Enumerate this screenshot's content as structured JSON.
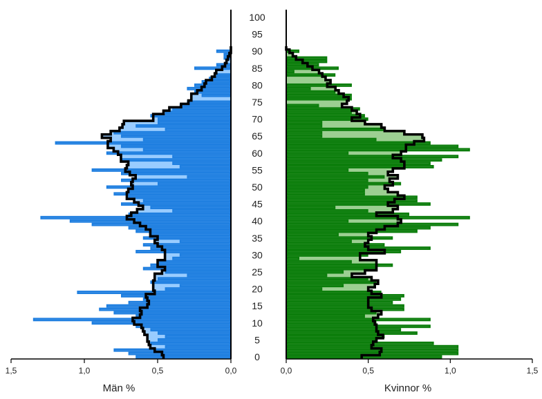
{
  "chart_data": {
    "type": "population-pyramid",
    "title": "",
    "age_axis": {
      "ticks": [
        0,
        5,
        10,
        15,
        20,
        25,
        30,
        35,
        40,
        45,
        50,
        55,
        60,
        65,
        70,
        75,
        80,
        85,
        90,
        95,
        100
      ],
      "range": [
        0,
        100
      ]
    },
    "legend": "none",
    "grid": false,
    "colors": {
      "men_fill": "#99ccff",
      "men_outline": "#1f7fe0",
      "women_fill": "#9ccf92",
      "women_outline": "#0b7d0b",
      "line": "#000000"
    },
    "men": {
      "xlabel": "Män %",
      "xlim": [
        1.5,
        0.0
      ],
      "x_ticks": [
        "1,5",
        "1,0",
        "0,5",
        "0,0"
      ],
      "x_tick_values": [
        1.5,
        1.0,
        0.5,
        0.0
      ],
      "ages": [
        0,
        1,
        2,
        3,
        4,
        5,
        6,
        7,
        8,
        9,
        10,
        11,
        12,
        13,
        14,
        15,
        16,
        17,
        18,
        19,
        20,
        21,
        22,
        23,
        24,
        25,
        26,
        27,
        28,
        29,
        30,
        31,
        32,
        33,
        34,
        35,
        36,
        37,
        38,
        39,
        40,
        41,
        42,
        43,
        44,
        45,
        46,
        47,
        48,
        49,
        50,
        51,
        52,
        53,
        54,
        55,
        56,
        57,
        58,
        59,
        60,
        61,
        62,
        63,
        64,
        65,
        66,
        67,
        68,
        69,
        70,
        71,
        72,
        73,
        74,
        75,
        76,
        77,
        78,
        79,
        80,
        81,
        82,
        83,
        84,
        85,
        86,
        87,
        88,
        89,
        90,
        91
      ],
      "smoothed": [
        0.46,
        0.47,
        0.52,
        0.55,
        0.56,
        0.57,
        0.57,
        0.59,
        0.6,
        0.61,
        0.66,
        0.67,
        0.62,
        0.61,
        0.62,
        0.57,
        0.56,
        0.57,
        0.58,
        0.52,
        0.53,
        0.53,
        0.53,
        0.52,
        0.52,
        0.47,
        0.45,
        0.5,
        0.5,
        0.45,
        0.45,
        0.45,
        0.47,
        0.5,
        0.52,
        0.5,
        0.55,
        0.55,
        0.58,
        0.62,
        0.66,
        0.71,
        0.68,
        0.64,
        0.6,
        0.63,
        0.66,
        0.71,
        0.71,
        0.7,
        0.67,
        0.68,
        0.67,
        0.65,
        0.69,
        0.72,
        0.71,
        0.7,
        0.75,
        0.75,
        0.77,
        0.8,
        0.84,
        0.84,
        0.82,
        0.88,
        0.82,
        0.76,
        0.74,
        0.73,
        0.53,
        0.53,
        0.46,
        0.42,
        0.34,
        0.29,
        0.27,
        0.27,
        0.23,
        0.2,
        0.18,
        0.17,
        0.13,
        0.11,
        0.1,
        0.06,
        0.04,
        0.03,
        0.02,
        0.01,
        0.0,
        0.0
      ],
      "bars": [
        [
          0,
          0.65
        ],
        [
          1,
          0.7
        ],
        [
          2,
          0.8
        ],
        [
          3,
          0.45
        ],
        [
          4,
          0.55
        ],
        [
          5,
          0.5
        ],
        [
          6,
          0.45
        ],
        [
          7,
          0.5
        ],
        [
          8,
          0.55
        ],
        [
          9,
          0.65
        ],
        [
          10,
          0.95
        ],
        [
          11,
          1.35
        ],
        [
          12,
          0.65
        ],
        [
          13,
          0.8
        ],
        [
          14,
          0.9
        ],
        [
          15,
          0.85
        ],
        [
          16,
          0.7
        ],
        [
          17,
          0.6
        ],
        [
          18,
          0.75
        ],
        [
          19,
          1.05
        ],
        [
          20,
          0.45
        ],
        [
          21,
          0.35
        ],
        [
          22,
          0.55
        ],
        [
          23,
          0.5
        ],
        [
          24,
          0.3
        ],
        [
          25,
          0.45
        ],
        [
          26,
          0.6
        ],
        [
          27,
          0.55
        ],
        [
          28,
          0.5
        ],
        [
          29,
          0.4
        ],
        [
          30,
          0.35
        ],
        [
          31,
          0.65
        ],
        [
          32,
          0.55
        ],
        [
          33,
          0.6
        ],
        [
          34,
          0.35
        ],
        [
          35,
          0.6
        ],
        [
          36,
          0.55
        ],
        [
          37,
          0.65
        ],
        [
          38,
          0.7
        ],
        [
          39,
          0.95
        ],
        [
          40,
          1.1
        ],
        [
          41,
          1.3
        ],
        [
          42,
          0.7
        ],
        [
          43,
          0.4
        ],
        [
          44,
          0.55
        ],
        [
          45,
          0.75
        ],
        [
          46,
          0.6
        ],
        [
          47,
          0.7
        ],
        [
          48,
          0.8
        ],
        [
          49,
          0.7
        ],
        [
          50,
          0.85
        ],
        [
          51,
          0.5
        ],
        [
          52,
          0.75
        ],
        [
          53,
          0.3
        ],
        [
          54,
          0.75
        ],
        [
          55,
          0.95
        ],
        [
          56,
          0.35
        ],
        [
          57,
          0.4
        ],
        [
          58,
          0.75
        ],
        [
          59,
          0.4
        ],
        [
          60,
          0.85
        ],
        [
          61,
          0.6
        ],
        [
          62,
          0.75
        ],
        [
          63,
          1.2
        ],
        [
          64,
          0.6
        ],
        [
          65,
          0.75
        ],
        [
          66,
          0.8
        ],
        [
          67,
          0.45
        ],
        [
          68,
          0.65
        ],
        [
          69,
          0.5
        ],
        [
          70,
          0.5
        ],
        [
          71,
          0.55
        ],
        [
          72,
          0.45
        ],
        [
          73,
          0.4
        ],
        [
          74,
          0.35
        ],
        [
          75,
          0.3
        ],
        [
          76,
          0.0
        ],
        [
          77,
          0.2
        ],
        [
          78,
          0.25
        ],
        [
          79,
          0.3
        ],
        [
          80,
          0.25
        ],
        [
          81,
          0.2
        ],
        [
          82,
          0.15
        ],
        [
          83,
          0.1
        ],
        [
          84,
          0.0
        ],
        [
          85,
          0.25
        ],
        [
          86,
          0.1
        ],
        [
          87,
          0.0
        ],
        [
          88,
          0.05
        ],
        [
          89,
          0.05
        ],
        [
          90,
          0.1
        ],
        [
          91,
          0.0
        ]
      ]
    },
    "women": {
      "xlabel": "Kvinnor %",
      "xlim": [
        0.0,
        1.5
      ],
      "x_ticks": [
        "0,0",
        "0,5",
        "1,0",
        "1,5"
      ],
      "x_tick_values": [
        0.0,
        0.5,
        1.0,
        1.5
      ],
      "ages": [
        0,
        1,
        2,
        3,
        4,
        5,
        6,
        7,
        8,
        9,
        10,
        11,
        12,
        13,
        14,
        15,
        16,
        17,
        18,
        19,
        20,
        21,
        22,
        23,
        24,
        25,
        26,
        27,
        28,
        29,
        30,
        31,
        32,
        33,
        34,
        35,
        36,
        37,
        38,
        39,
        40,
        41,
        42,
        43,
        44,
        45,
        46,
        47,
        48,
        49,
        50,
        51,
        52,
        53,
        54,
        55,
        56,
        57,
        58,
        59,
        60,
        61,
        62,
        63,
        64,
        65,
        66,
        67,
        68,
        69,
        70,
        71,
        72,
        73,
        74,
        75,
        76,
        77,
        78,
        79,
        80,
        81,
        82,
        83,
        84,
        85,
        86,
        87,
        88,
        89,
        90,
        91
      ],
      "smoothed": [
        0.46,
        0.57,
        0.58,
        0.52,
        0.53,
        0.55,
        0.59,
        0.56,
        0.55,
        0.55,
        0.54,
        0.53,
        0.56,
        0.58,
        0.52,
        0.5,
        0.5,
        0.5,
        0.58,
        0.52,
        0.5,
        0.54,
        0.56,
        0.52,
        0.4,
        0.48,
        0.55,
        0.55,
        0.55,
        0.45,
        0.45,
        0.6,
        0.5,
        0.48,
        0.5,
        0.52,
        0.5,
        0.55,
        0.6,
        0.68,
        0.7,
        0.68,
        0.55,
        0.65,
        0.68,
        0.62,
        0.66,
        0.72,
        0.68,
        0.62,
        0.6,
        0.65,
        0.63,
        0.68,
        0.62,
        0.65,
        0.72,
        0.72,
        0.7,
        0.65,
        0.7,
        0.73,
        0.73,
        0.78,
        0.84,
        0.83,
        0.72,
        0.6,
        0.58,
        0.48,
        0.4,
        0.45,
        0.43,
        0.4,
        0.34,
        0.37,
        0.38,
        0.35,
        0.32,
        0.3,
        0.25,
        0.27,
        0.24,
        0.22,
        0.2,
        0.16,
        0.13,
        0.1,
        0.06,
        0.04,
        0.02,
        0.0
      ],
      "bars": [
        [
          0,
          0.95
        ],
        [
          1,
          1.05
        ],
        [
          2,
          1.05
        ],
        [
          3,
          1.05
        ],
        [
          4,
          0.9
        ],
        [
          5,
          0.55
        ],
        [
          6,
          0.6
        ],
        [
          7,
          0.8
        ],
        [
          8,
          0.7
        ],
        [
          9,
          0.88
        ],
        [
          10,
          0.55
        ],
        [
          11,
          0.88
        ],
        [
          12,
          0.48
        ],
        [
          13,
          0.55
        ],
        [
          14,
          0.72
        ],
        [
          15,
          0.72
        ],
        [
          16,
          0.65
        ],
        [
          17,
          0.7
        ],
        [
          18,
          0.72
        ],
        [
          19,
          0.58
        ],
        [
          20,
          0.22
        ],
        [
          21,
          0.35
        ],
        [
          22,
          0.55
        ],
        [
          23,
          0.5
        ],
        [
          24,
          0.25
        ],
        [
          25,
          0.35
        ],
        [
          26,
          0.55
        ],
        [
          27,
          0.65
        ],
        [
          28,
          0.4
        ],
        [
          29,
          0.08
        ],
        [
          30,
          0.5
        ],
        [
          31,
          0.7
        ],
        [
          32,
          0.88
        ],
        [
          33,
          0.6
        ],
        [
          34,
          0.4
        ],
        [
          35,
          0.65
        ],
        [
          36,
          0.32
        ],
        [
          37,
          0.8
        ],
        [
          38,
          0.88
        ],
        [
          39,
          1.05
        ],
        [
          40,
          0.38
        ],
        [
          41,
          1.12
        ],
        [
          42,
          0.75
        ],
        [
          43,
          0.5
        ],
        [
          44,
          0.3
        ],
        [
          45,
          0.88
        ],
        [
          46,
          0.8
        ],
        [
          47,
          0.8
        ],
        [
          48,
          0.48
        ],
        [
          49,
          0.48
        ],
        [
          50,
          0.5
        ],
        [
          51,
          0.7
        ],
        [
          52,
          0.5
        ],
        [
          53,
          0.6
        ],
        [
          54,
          0.5
        ],
        [
          55,
          0.38
        ],
        [
          56,
          0.9
        ],
        [
          57,
          0.88
        ],
        [
          58,
          0.95
        ],
        [
          59,
          1.05
        ],
        [
          60,
          0.38
        ],
        [
          61,
          1.12
        ],
        [
          62,
          1.05
        ],
        [
          63,
          0.88
        ],
        [
          64,
          0.55
        ],
        [
          65,
          0.22
        ],
        [
          66,
          0.22
        ],
        [
          67,
          0.6
        ],
        [
          68,
          0.22
        ],
        [
          69,
          0.22
        ],
        [
          70,
          0.5
        ],
        [
          71,
          0.48
        ],
        [
          72,
          0.4
        ],
        [
          73,
          0.45
        ],
        [
          74,
          0.2
        ],
        [
          75,
          0.0
        ],
        [
          76,
          0.4
        ],
        [
          77,
          0.4
        ],
        [
          78,
          0.3
        ],
        [
          79,
          0.15
        ],
        [
          80,
          0.4
        ],
        [
          81,
          0.0
        ],
        [
          82,
          0.0
        ],
        [
          83,
          0.3
        ],
        [
          84,
          0.05
        ],
        [
          85,
          0.32
        ],
        [
          86,
          0.2
        ],
        [
          87,
          0.25
        ],
        [
          88,
          0.25
        ],
        [
          89,
          0.0
        ],
        [
          90,
          0.08
        ],
        [
          91,
          0.0
        ]
      ]
    }
  }
}
